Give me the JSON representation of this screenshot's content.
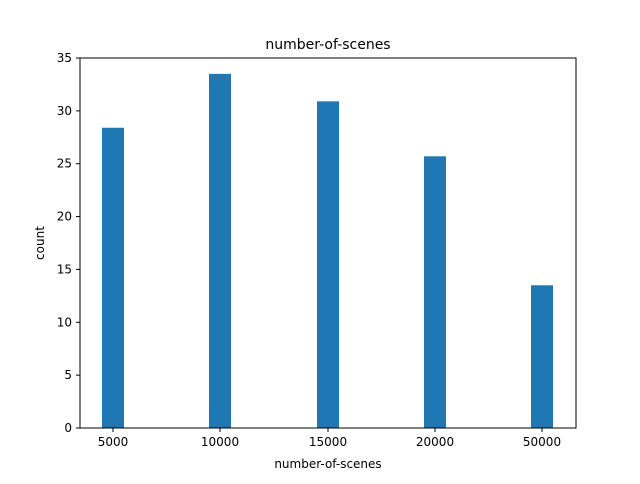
{
  "chart_data": {
    "type": "bar",
    "title": "number-of-scenes",
    "xlabel": "number-of-scenes",
    "ylabel": "count",
    "categories": [
      "5000",
      "10000",
      "15000",
      "20000",
      "50000"
    ],
    "values": [
      28.4,
      33.5,
      30.9,
      25.7,
      13.5
    ],
    "ylim": [
      0,
      35
    ],
    "yticks": [
      0,
      5,
      10,
      15,
      20,
      25,
      30,
      35
    ],
    "bar_color": "#1f77b4",
    "grid": false,
    "legend": "none"
  }
}
